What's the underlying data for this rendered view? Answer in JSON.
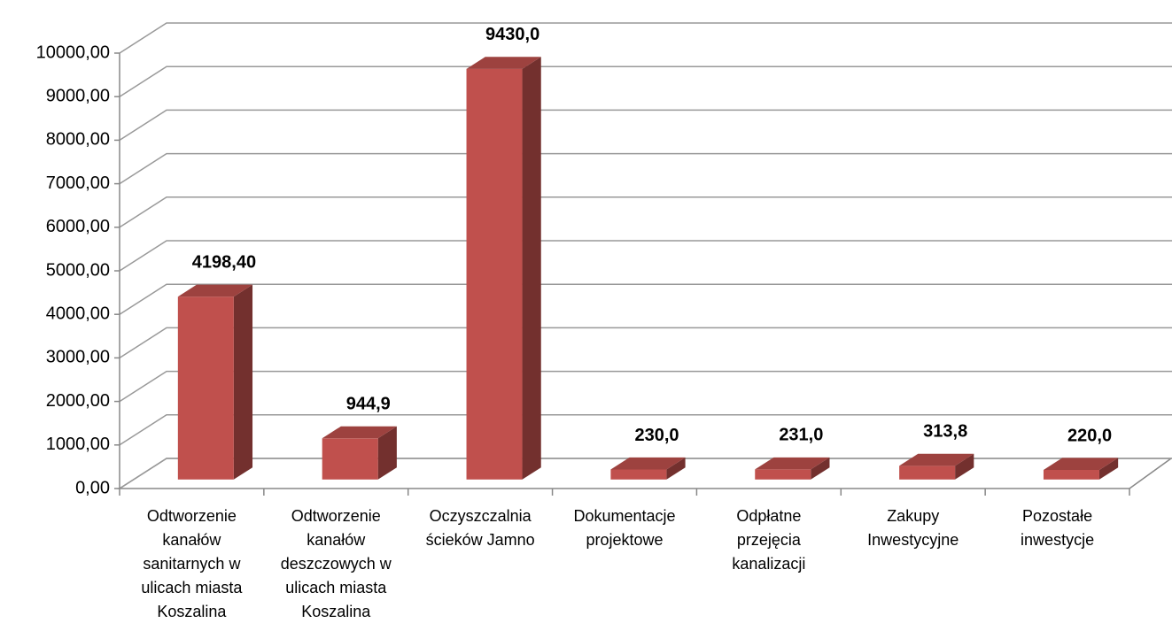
{
  "chart_data": {
    "type": "bar3d",
    "categories": [
      "Odtworzenie kanałów sanitarnych w ulicach miasta Koszalina",
      "Odtworzenie kanałów deszczowych w ulicach miasta Koszalina",
      "Oczyszczalnia ścieków Jamno",
      "Dokumentacje projektowe",
      "Odpłatne przejęcia kanalizacji",
      "Zakupy Inwestycyjne",
      "Pozostałe inwestycje"
    ],
    "values": [
      4198.4,
      944.9,
      9430.0,
      230.0,
      231.0,
      313.8,
      220.0
    ],
    "value_labels": [
      "4198,40",
      "944,9",
      "9430,0",
      "230,0",
      "231,0",
      "313,8",
      "220,0"
    ],
    "color": "#c0504d",
    "ylim": [
      0,
      10000
    ],
    "yticks": [
      {
        "value": 0,
        "label": "0,00"
      },
      {
        "value": 1000,
        "label": "1000,00"
      },
      {
        "value": 2000,
        "label": "2000,00"
      },
      {
        "value": 3000,
        "label": "3000,00"
      },
      {
        "value": 4000,
        "label": "4000,00"
      },
      {
        "value": 5000,
        "label": "5000,00"
      },
      {
        "value": 6000,
        "label": "6000,00"
      },
      {
        "value": 7000,
        "label": "7000,00"
      },
      {
        "value": 8000,
        "label": "8000,00"
      },
      {
        "value": 9000,
        "label": "9000,00"
      },
      {
        "value": 10000,
        "label": "10000,00"
      }
    ],
    "grid": true
  }
}
